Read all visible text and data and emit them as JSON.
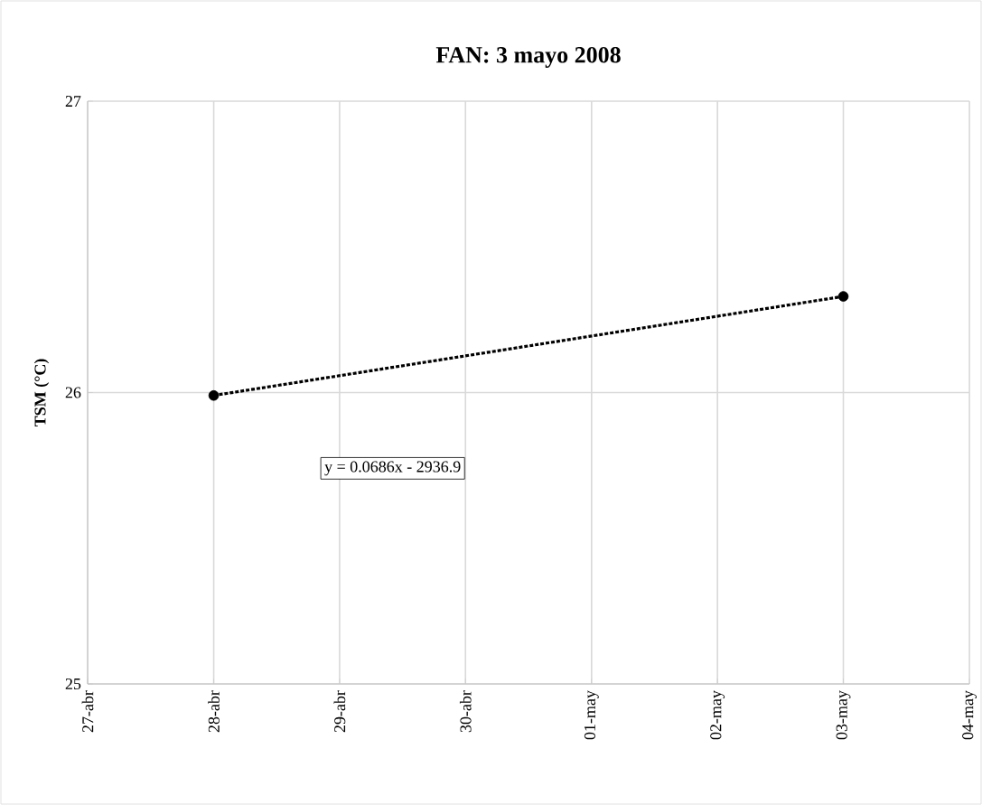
{
  "chart_data": {
    "type": "scatter",
    "title": "FAN: 3 mayo 2008",
    "ylabel": "TSM (°C)",
    "x": [
      "2008-04-28",
      "2008-05-03"
    ],
    "series": [
      {
        "color": "#000000",
        "marker": "circle",
        "values": [
          25.99,
          26.33
        ]
      },
      {
        "type": "line",
        "color": "#000000",
        "line_style": "dashed",
        "values": [
          25.99,
          26.33
        ]
      }
    ],
    "xlim": [
      "2008-04-27",
      "2008-05-04"
    ],
    "xticks": [
      {
        "value": "2008-04-27",
        "label": "27-abr"
      },
      {
        "value": "2008-04-28",
        "label": "28-abr"
      },
      {
        "value": "2008-04-29",
        "label": "29-abr"
      },
      {
        "value": "2008-04-30",
        "label": "30-abr"
      },
      {
        "value": "2008-05-01",
        "label": "01-may"
      },
      {
        "value": "2008-05-02",
        "label": "02-may"
      },
      {
        "value": "2008-05-03",
        "label": "03-may"
      },
      {
        "value": "2008-05-04",
        "label": "04-may"
      }
    ],
    "ylim": [
      25,
      27
    ],
    "yticks": [
      25,
      26,
      27
    ],
    "grid": true,
    "annotations": [
      "y = 0.0686x - 2936.9"
    ]
  }
}
